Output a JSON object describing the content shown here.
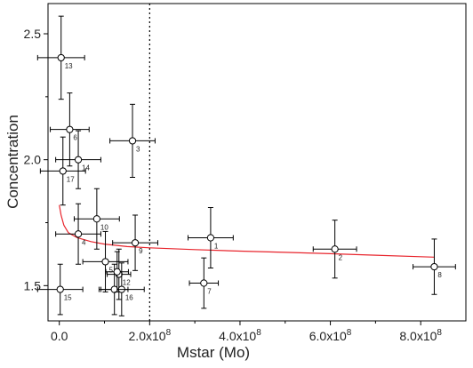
{
  "chart_data": {
    "type": "scatter",
    "xlabel": "Mstar (Mo)",
    "ylabel": "Concentration",
    "xlim": [
      -25000000.0,
      900000000.0
    ],
    "ylim": [
      1.36,
      2.62
    ],
    "x_ticks": [
      {
        "value": 0.0,
        "label": "0.0"
      },
      {
        "value": 200000000.0,
        "label": "2.0x10",
        "exp": "8"
      },
      {
        "value": 400000000.0,
        "label": "4.0x10",
        "exp": "8"
      },
      {
        "value": 600000000.0,
        "label": "6.0x10",
        "exp": "8"
      },
      {
        "value": 800000000.0,
        "label": "8.0x10",
        "exp": "8"
      }
    ],
    "y_ticks": [
      {
        "value": 1.5,
        "label": "1.5"
      },
      {
        "value": 2.0,
        "label": "2.0"
      },
      {
        "value": 2.5,
        "label": "2.5"
      }
    ],
    "reference_line_x": 200000000.0,
    "points": [
      {
        "label": "1",
        "x": 335000000.0,
        "y": 1.69,
        "xerr": 50000000.0,
        "yerr": 0.12
      },
      {
        "label": "2",
        "x": 610000000.0,
        "y": 1.645,
        "xerr": 48000000.0,
        "yerr": 0.115
      },
      {
        "label": "3",
        "x": 162000000.0,
        "y": 2.075,
        "xerr": 50000000.0,
        "yerr": 0.145
      },
      {
        "label": "4",
        "x": 42000000.0,
        "y": 1.705,
        "xerr": 50000000.0,
        "yerr": 0.12
      },
      {
        "label": "5",
        "x": 102000000.0,
        "y": 1.595,
        "xerr": 50000000.0,
        "yerr": 0.12
      },
      {
        "label": "6",
        "x": 23000000.0,
        "y": 2.12,
        "xerr": 43000000.0,
        "yerr": 0.145
      },
      {
        "label": "7",
        "x": 320000000.0,
        "y": 1.51,
        "xerr": 32000000.0,
        "yerr": 0.1
      },
      {
        "label": "8",
        "x": 830000000.0,
        "y": 1.575,
        "xerr": 47000000.0,
        "yerr": 0.11
      },
      {
        "label": "9",
        "x": 168000000.0,
        "y": 1.67,
        "xerr": 50000000.0,
        "yerr": 0.11
      },
      {
        "label": "10",
        "x": 83000000.0,
        "y": 1.765,
        "xerr": 50000000.0,
        "yerr": 0.12
      },
      {
        "label": "12",
        "x": 132000000.0,
        "y": 1.545,
        "xerr": 26000000.0,
        "yerr": 0.1
      },
      {
        "label": "13",
        "x": 4000000.0,
        "y": 2.405,
        "xerr": 52000000.0,
        "yerr": 0.165
      },
      {
        "label": "14",
        "x": 42000000.0,
        "y": 2.0,
        "xerr": 50000000.0,
        "yerr": 0.115
      },
      {
        "label": "15",
        "x": 2000000.0,
        "y": 1.485,
        "xerr": 50000000.0,
        "yerr": 0.1
      },
      {
        "label": "16",
        "x": 138000000.0,
        "y": 1.485,
        "xerr": 50000000.0,
        "yerr": 0.105
      },
      {
        "label": "17",
        "x": 8000000.0,
        "y": 1.955,
        "xerr": 50000000.0,
        "yerr": 0.135
      },
      {
        "label": "",
        "x": 122000000.0,
        "y": 1.485,
        "xerr": 30000000.0,
        "yerr": 0.1
      },
      {
        "label": "",
        "x": 128000000.0,
        "y": 1.555,
        "xerr": 25000000.0,
        "yerr": 0.08
      }
    ],
    "fit_curve": {
      "color": "#e8242c",
      "points": [
        [
          0.0,
          1.82
        ],
        [
          4000000.0,
          1.78
        ],
        [
          10000000.0,
          1.74
        ],
        [
          20000000.0,
          1.71
        ],
        [
          40000000.0,
          1.69
        ],
        [
          70000000.0,
          1.675
        ],
        [
          100000000.0,
          1.665
        ],
        [
          150000000.0,
          1.655
        ],
        [
          200000000.0,
          1.65
        ],
        [
          300000000.0,
          1.643
        ],
        [
          400000000.0,
          1.637
        ],
        [
          500000000.0,
          1.632
        ],
        [
          600000000.0,
          1.627
        ],
        [
          700000000.0,
          1.621
        ],
        [
          800000000.0,
          1.615
        ],
        [
          830000000.0,
          1.613
        ]
      ]
    }
  }
}
